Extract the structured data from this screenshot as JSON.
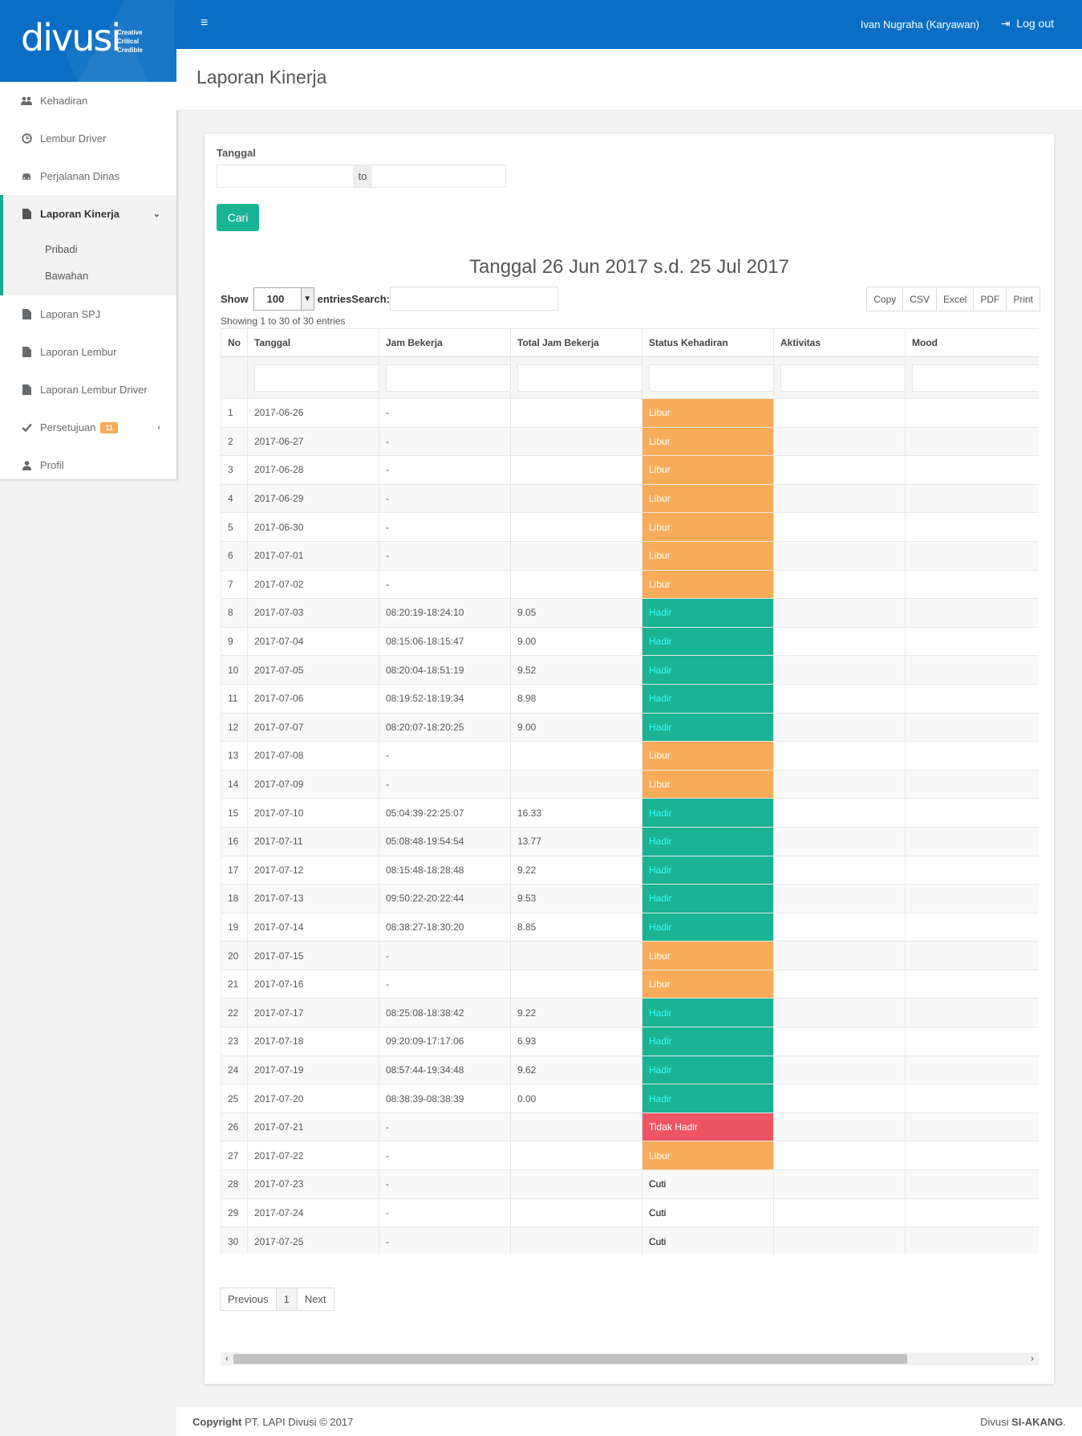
{
  "brand": {
    "name": "divusi",
    "tagline": [
      "Creative",
      "Critical",
      "Credible"
    ]
  },
  "sidebar": {
    "items": [
      {
        "label": "Kehadiran",
        "icon": "users-icon"
      },
      {
        "label": "Lembur Driver",
        "icon": "clock-icon"
      },
      {
        "label": "Perjalanan Dinas",
        "icon": "car-icon"
      },
      {
        "label": "Laporan Kinerja",
        "icon": "file-icon"
      },
      {
        "label": "Laporan SPJ",
        "icon": "file-icon"
      },
      {
        "label": "Laporan Lembur",
        "icon": "file-icon"
      },
      {
        "label": "Laporan Lembur Driver",
        "icon": "file-icon"
      },
      {
        "label": "Persetujuan",
        "icon": "check-icon",
        "badge": "11"
      },
      {
        "label": "Profil",
        "icon": "user-icon"
      }
    ],
    "sub_items": [
      "Pribadi",
      "Bawahan"
    ]
  },
  "topbar": {
    "menu_icon": "≡",
    "user": "Ivan Nugraha (Karyawan)",
    "logout": "Log out"
  },
  "page": {
    "title": "Laporan Kinerja"
  },
  "filter": {
    "label": "Tanggal",
    "to": "to",
    "button": "Cari"
  },
  "report": {
    "title": "Tanggal 26 Jun 2017 s.d. 25 Jul 2017"
  },
  "table_controls": {
    "show": "Show",
    "entries_value": "100",
    "entries_search": "entriesSearch:",
    "export_buttons": [
      "Copy",
      "CSV",
      "Excel",
      "PDF",
      "Print"
    ],
    "info": "Showing 1 to 30 of 30 entries"
  },
  "table": {
    "headers": [
      "No",
      "Tanggal",
      "Jam Bekerja",
      "Total Jam Bekerja",
      "Status Kehadiran",
      "Aktivitas",
      "Mood"
    ],
    "rows": [
      [
        "1",
        "2017-06-26",
        "-",
        "",
        "Libur"
      ],
      [
        "2",
        "2017-06-27",
        "-",
        "",
        "Libur"
      ],
      [
        "3",
        "2017-06-28",
        "-",
        "",
        "Libur"
      ],
      [
        "4",
        "2017-06-29",
        "-",
        "",
        "Libur"
      ],
      [
        "5",
        "2017-06-30",
        "-",
        "",
        "Libur"
      ],
      [
        "6",
        "2017-07-01",
        "-",
        "",
        "Libur"
      ],
      [
        "7",
        "2017-07-02",
        "-",
        "",
        "Libur"
      ],
      [
        "8",
        "2017-07-03",
        "08:20:19-18:24:10",
        "9.05",
        "Hadir"
      ],
      [
        "9",
        "2017-07-04",
        "08:15:06-18:15:47",
        "9.00",
        "Hadir"
      ],
      [
        "10",
        "2017-07-05",
        "08:20:04-18:51:19",
        "9.52",
        "Hadir"
      ],
      [
        "11",
        "2017-07-06",
        "08:19:52-18:19:34",
        "8.98",
        "Hadir"
      ],
      [
        "12",
        "2017-07-07",
        "08:20:07-18:20:25",
        "9.00",
        "Hadir"
      ],
      [
        "13",
        "2017-07-08",
        "-",
        "",
        "Libur"
      ],
      [
        "14",
        "2017-07-09",
        "-",
        "",
        "Libur"
      ],
      [
        "15",
        "2017-07-10",
        "05:04:39-22:25:07",
        "16.33",
        "Hadir"
      ],
      [
        "16",
        "2017-07-11",
        "05:08:48-19:54:54",
        "13.77",
        "Hadir"
      ],
      [
        "17",
        "2017-07-12",
        "08:15:48-18:28:48",
        "9.22",
        "Hadir"
      ],
      [
        "18",
        "2017-07-13",
        "09:50:22-20:22:44",
        "9.53",
        "Hadir"
      ],
      [
        "19",
        "2017-07-14",
        "08:38:27-18:30:20",
        "8.85",
        "Hadir"
      ],
      [
        "20",
        "2017-07-15",
        "-",
        "",
        "Libur"
      ],
      [
        "21",
        "2017-07-16",
        "-",
        "",
        "Libur"
      ],
      [
        "22",
        "2017-07-17",
        "08:25:08-18:38:42",
        "9.22",
        "Hadir"
      ],
      [
        "23",
        "2017-07-18",
        "09:20:09-17:17:06",
        "6.93",
        "Hadir"
      ],
      [
        "24",
        "2017-07-19",
        "08:57:44-19:34:48",
        "9.62",
        "Hadir"
      ],
      [
        "25",
        "2017-07-20",
        "08:38:39-08:38:39",
        "0.00",
        "Hadir"
      ],
      [
        "26",
        "2017-07-21",
        "-",
        "",
        "Tidak Hadir"
      ],
      [
        "27",
        "2017-07-22",
        "-",
        "",
        "Libur"
      ],
      [
        "28",
        "2017-07-23",
        "-",
        "",
        "Cuti"
      ],
      [
        "29",
        "2017-07-24",
        "-",
        "",
        "Cuti"
      ],
      [
        "30",
        "2017-07-25",
        "-",
        "",
        "Cuti"
      ]
    ]
  },
  "pagination": {
    "previous": "Previous",
    "current": "1",
    "next": "Next"
  },
  "footer": {
    "copyright_bold": "Copyright",
    "copyright_rest": " PT. LAPI Divusi © 2017",
    "right_plain": "Divusi ",
    "right_bold": "SI-AKANG",
    "right_end": "."
  },
  "colors": {
    "primary": "#0a6fc4",
    "accent": "#1ab394",
    "libur": "#f8ac59",
    "hadir": "#1ab394",
    "tidak_hadir": "#ed5565"
  }
}
